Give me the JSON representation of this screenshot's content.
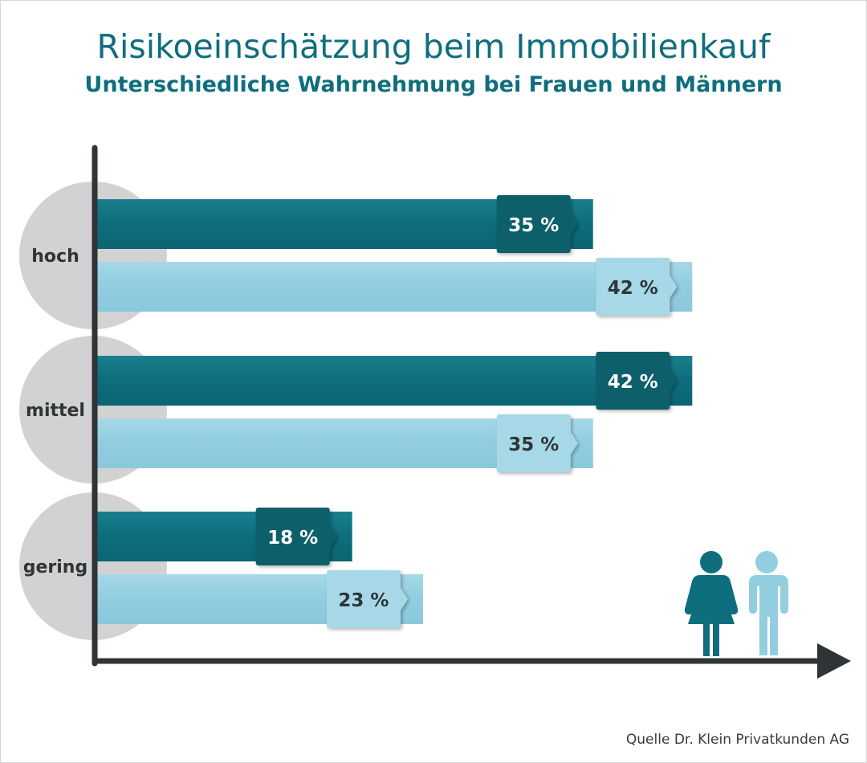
{
  "chart_data": {
    "type": "bar",
    "orientation": "horizontal",
    "title": "Risikoeinschätzung beim Immobilienkauf",
    "subtitle": "Unterschiedliche Wahrnehmung bei Frauen und Männern",
    "categories": [
      "hoch",
      "mittel",
      "gering"
    ],
    "series": [
      {
        "values": [
          35,
          42,
          18
        ],
        "color": "#0f6e7d",
        "icon": "woman-icon"
      },
      {
        "values": [
          42,
          35,
          23
        ],
        "color": "#92cee0",
        "icon": "man-icon"
      }
    ],
    "value_suffix": " %",
    "xlim": [
      0,
      56
    ],
    "grid": false,
    "legend": "bottom-right (pictograms)"
  },
  "source": "Quelle Dr. Klein Privatkunden AG",
  "colors": {
    "women": "#0f6e7d",
    "women_label_box": "#0b5f6b",
    "men": "#92cee0",
    "men_label_box": "#a7d8e7",
    "axis": "#2f3437",
    "category_disc": "#d2d2d2",
    "title": "#0f6e7d"
  }
}
